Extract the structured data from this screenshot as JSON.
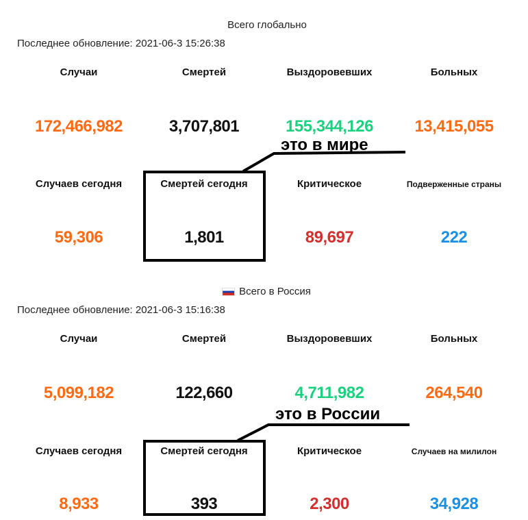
{
  "global": {
    "title": "Всего глобально",
    "updated": "Последнее обновление: 2021-06-3 15:26:38",
    "stats": [
      {
        "label": "Случаи",
        "value": "172,466,982",
        "color": "#ff6a13"
      },
      {
        "label": "Смертей",
        "value": "3,707,801",
        "color": "#111111"
      },
      {
        "label": "Выздоровевших",
        "value": "155,344,126",
        "color": "#1bd17f"
      },
      {
        "label": "Больных",
        "value": "13,415,055",
        "color": "#ff6a13"
      },
      {
        "label": "Случаев сегодня",
        "value": "59,306",
        "color": "#ff6a13"
      },
      {
        "label": "Смертей сегодня",
        "value": "1,801",
        "color": "#111111"
      },
      {
        "label": "Критическое",
        "value": "89,697",
        "color": "#d32f2f"
      },
      {
        "label": "Подверженные страны",
        "value": "222",
        "color": "#1a8fe3"
      }
    ],
    "annotation": "это в мире"
  },
  "russia": {
    "flag_icon": "russia-flag-icon",
    "title": "Всего в Россия",
    "updated": "Последнее обновление: 2021-06-3 15:16:38",
    "stats": [
      {
        "label": "Случаи",
        "value": "5,099,182",
        "color": "#ff6a13"
      },
      {
        "label": "Смертей",
        "value": "122,660",
        "color": "#111111"
      },
      {
        "label": "Выздоровевших",
        "value": "4,711,982",
        "color": "#1bd17f"
      },
      {
        "label": "Больных",
        "value": "264,540",
        "color": "#ff6a13"
      },
      {
        "label": "Случаев сегодня",
        "value": "8,933",
        "color": "#ff6a13"
      },
      {
        "label": "Смертей сегодня",
        "value": "393",
        "color": "#111111"
      },
      {
        "label": "Критическое",
        "value": "2,300",
        "color": "#d32f2f"
      },
      {
        "label": "Случаев на милилон",
        "value": "34,928",
        "color": "#1a8fe3"
      }
    ],
    "annotation": "это в России"
  }
}
